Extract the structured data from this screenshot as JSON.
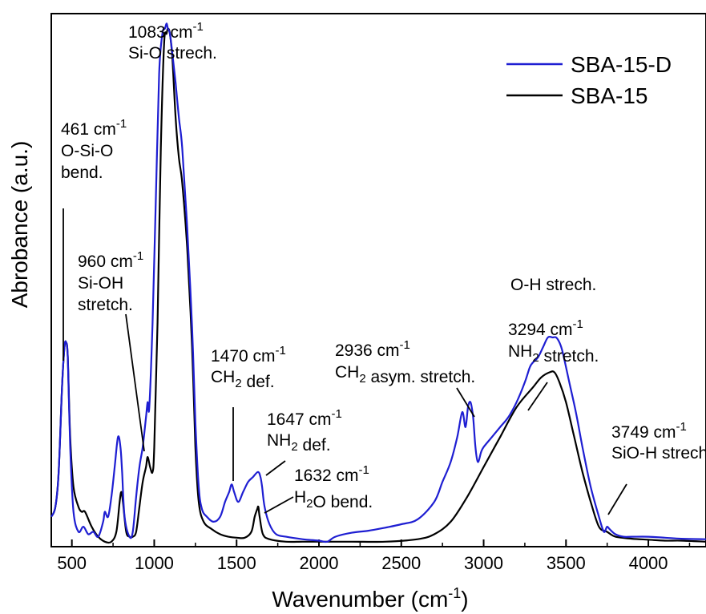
{
  "chart_data": {
    "type": "line",
    "title": "",
    "xlabel": "Wavenumber (cm",
    "xlabel_sup": "-1",
    "xlabel_suffix": ")",
    "ylabel": "Abrobance (a.u.)",
    "xlim": [
      375,
      4350
    ],
    "ylim": [
      0,
      1.07
    ],
    "grid": false,
    "legend_position": "top-right",
    "x_ticks": [
      500,
      1000,
      1500,
      2000,
      2500,
      3000,
      3500,
      4000
    ],
    "x_tick_labels": [
      "500",
      "1000",
      "1500",
      "2000",
      "2500",
      "3000",
      "3500",
      "4000"
    ],
    "colors": {
      "SBA-15-D": "#1e1ed2",
      "SBA-15": "#000000",
      "axis": "#000000"
    },
    "series": [
      {
        "name": "SBA-15-D",
        "x": [
          375,
          400,
          420,
          440,
          455,
          465,
          475,
          490,
          510,
          540,
          570,
          600,
          630,
          660,
          690,
          700,
          720,
          740,
          760,
          780,
          795,
          805,
          820,
          850,
          870,
          890,
          910,
          930,
          950,
          960,
          970,
          990,
          1010,
          1030,
          1050,
          1065,
          1075,
          1083,
          1095,
          1110,
          1130,
          1150,
          1170,
          1200,
          1230,
          1250,
          1270,
          1290,
          1320,
          1360,
          1400,
          1430,
          1455,
          1470,
          1485,
          1510,
          1540,
          1570,
          1600,
          1630,
          1645,
          1655,
          1670,
          1700,
          1740,
          1800,
          1900,
          2000,
          2050,
          2100,
          2200,
          2300,
          2400,
          2500,
          2600,
          2700,
          2750,
          2800,
          2840,
          2870,
          2890,
          2905,
          2920,
          2936,
          2950,
          2965,
          2985,
          3000,
          3050,
          3100,
          3150,
          3200,
          3250,
          3280,
          3300,
          3330,
          3360,
          3390,
          3420,
          3440,
          3460,
          3480,
          3520,
          3560,
          3600,
          3650,
          3700,
          3730,
          3749,
          3765,
          3800,
          3850,
          3900,
          4000,
          4100,
          4200,
          4350
        ],
        "y": [
          0.06,
          0.08,
          0.15,
          0.32,
          0.4,
          0.41,
          0.38,
          0.2,
          0.07,
          0.03,
          0.04,
          0.025,
          0.03,
          0.02,
          0.05,
          0.07,
          0.06,
          0.1,
          0.16,
          0.22,
          0.2,
          0.15,
          0.06,
          0.02,
          0.03,
          0.1,
          0.16,
          0.2,
          0.26,
          0.29,
          0.28,
          0.45,
          0.7,
          0.95,
          1.03,
          1.04,
          1.05,
          1.04,
          1.03,
          0.99,
          0.93,
          0.86,
          0.8,
          0.64,
          0.44,
          0.25,
          0.12,
          0.075,
          0.06,
          0.05,
          0.06,
          0.09,
          0.11,
          0.125,
          0.11,
          0.09,
          0.11,
          0.13,
          0.14,
          0.15,
          0.14,
          0.12,
          0.08,
          0.045,
          0.025,
          0.02,
          0.015,
          0.012,
          0.01,
          0.02,
          0.028,
          0.032,
          0.038,
          0.045,
          0.055,
          0.09,
          0.13,
          0.17,
          0.22,
          0.27,
          0.24,
          0.28,
          0.29,
          0.26,
          0.2,
          0.17,
          0.19,
          0.2,
          0.22,
          0.24,
          0.26,
          0.29,
          0.33,
          0.36,
          0.37,
          0.38,
          0.4,
          0.42,
          0.42,
          0.42,
          0.41,
          0.39,
          0.33,
          0.27,
          0.2,
          0.12,
          0.06,
          0.03,
          0.04,
          0.035,
          0.025,
          0.02,
          0.02,
          0.02,
          0.018,
          0.016,
          0.015
        ]
      },
      {
        "name": "SBA-15",
        "x": [
          375,
          400,
          420,
          440,
          455,
          465,
          475,
          490,
          510,
          540,
          560,
          580,
          620,
          660,
          700,
          740,
          770,
          790,
          800,
          810,
          830,
          850,
          870,
          890,
          910,
          930,
          950,
          960,
          975,
          990,
          1000,
          1020,
          1040,
          1060,
          1075,
          1083,
          1095,
          1110,
          1130,
          1150,
          1170,
          1200,
          1230,
          1250,
          1270,
          1300,
          1350,
          1400,
          1450,
          1500,
          1550,
          1590,
          1610,
          1625,
          1632,
          1640,
          1660,
          1700,
          1800,
          1900,
          2000,
          2200,
          2400,
          2600,
          2700,
          2800,
          2900,
          3000,
          3100,
          3200,
          3300,
          3350,
          3400,
          3430,
          3460,
          3500,
          3550,
          3600,
          3650,
          3700,
          3749,
          3800,
          3900,
          4000,
          4100,
          4200,
          4350
        ],
        "y": [
          0.06,
          0.08,
          0.15,
          0.32,
          0.4,
          0.41,
          0.38,
          0.22,
          0.12,
          0.08,
          0.07,
          0.07,
          0.04,
          0.02,
          0.01,
          0.01,
          0.03,
          0.09,
          0.11,
          0.09,
          0.03,
          0.02,
          0.02,
          0.03,
          0.08,
          0.13,
          0.16,
          0.18,
          0.16,
          0.15,
          0.2,
          0.45,
          0.8,
          1.01,
          1.03,
          1.04,
          1.03,
          0.98,
          0.86,
          0.78,
          0.73,
          0.6,
          0.4,
          0.2,
          0.09,
          0.05,
          0.035,
          0.025,
          0.02,
          0.018,
          0.018,
          0.03,
          0.06,
          0.075,
          0.08,
          0.06,
          0.025,
          0.015,
          0.01,
          0.01,
          0.01,
          0.01,
          0.01,
          0.015,
          0.025,
          0.05,
          0.1,
          0.16,
          0.22,
          0.28,
          0.32,
          0.34,
          0.35,
          0.35,
          0.33,
          0.29,
          0.22,
          0.15,
          0.09,
          0.04,
          0.03,
          0.02,
          0.016,
          0.014,
          0.012,
          0.012,
          0.01
        ]
      }
    ],
    "annotations": [
      {
        "lines": [
          "1083 cm|-1",
          "Si-O strech."
        ],
        "leader": null
      },
      {
        "lines": [
          "461 cm|-1",
          "O-Si-O",
          "bend."
        ],
        "leader": [
          461,
          0.41
        ]
      },
      {
        "lines": [
          "960 cm|-1",
          "Si-OH",
          "stretch."
        ],
        "leader": [
          960,
          0.18
        ]
      },
      {
        "lines": [
          "1470 cm|-1",
          "CH|2| def."
        ],
        "leader": [
          1470,
          0.125
        ]
      },
      {
        "lines": [
          "1647 cm|-1",
          "NH|2| def."
        ],
        "leader": [
          1647,
          0.15
        ]
      },
      {
        "lines": [
          "1632 cm|-1",
          "H|2|O bend."
        ],
        "leader": [
          1632,
          0.08
        ]
      },
      {
        "lines": [
          "2936 cm|-1",
          "CH|2| asym. stretch."
        ],
        "leader": [
          2936,
          0.26
        ]
      },
      {
        "lines": [
          "O-H strech."
        ],
        "leader": null
      },
      {
        "lines": [
          "3294 cm|-1",
          "NH|2| stretch."
        ],
        "leader": [
          3294,
          0.36
        ]
      },
      {
        "lines": [
          "3749 cm|-1",
          "SiO-H strech."
        ],
        "leader": [
          3749,
          0.035
        ]
      }
    ]
  }
}
